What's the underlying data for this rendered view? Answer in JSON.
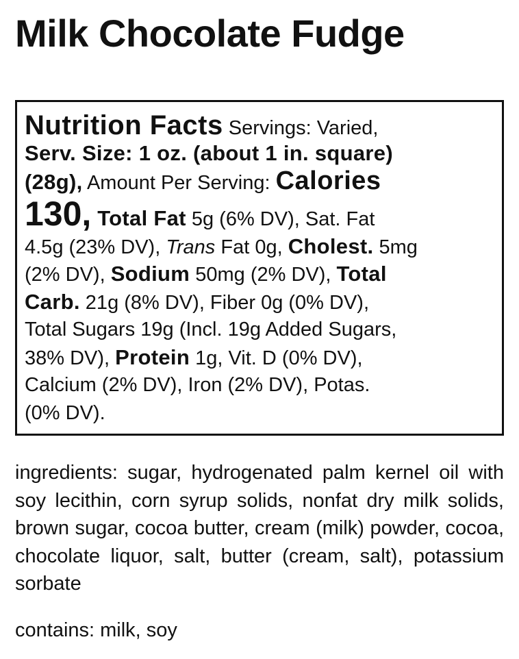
{
  "title": "Milk Chocolate Fudge",
  "nutrition": {
    "heading": "Nutrition Facts",
    "servings": " Servings: Varied,",
    "serv_size": "Serv. Size: 1 oz. (about 1 in. square)",
    "grams": "(28g),",
    "amount_per": " Amount Per Serving: ",
    "calories_label": "Calories",
    "calories_value": "130,",
    "total_fat_label": " Total Fat",
    "l4_rest": " 5g (6% DV), Sat. Fat",
    "l5_a": "4.5g (23% DV), ",
    "trans": "Trans",
    "l5_b": " Fat 0g, ",
    "cholest_label": "Cholest.",
    "l5_c": " 5mg",
    "l6_a": "(2% DV), ",
    "sodium_label": "Sodium",
    "l6_b": " 50mg (2% DV), ",
    "total_label": "Total",
    "carb_label": "Carb.",
    "l7_rest": " 21g (8% DV), Fiber 0g (0% DV),",
    "l8": "Total Sugars 19g (Incl. 19g Added Sugars,",
    "l9_a": "38% DV), ",
    "protein_label": "Protein",
    "l9_b": " 1g, Vit. D (0% DV),",
    "l10": "Calcium (2% DV), Iron (2% DV), Potas.",
    "l11": "(0% DV)."
  },
  "ingredients": "ingredients: sugar, hydrogenated palm kernel oil with soy lecithin, corn syrup solids, nonfat dry milk solids, brown sugar, cocoa butter, cream (milk) powder, cocoa, chocolate liquor, salt, butter (cream, salt), potassium sorbate",
  "contains": "contains: milk, soy"
}
